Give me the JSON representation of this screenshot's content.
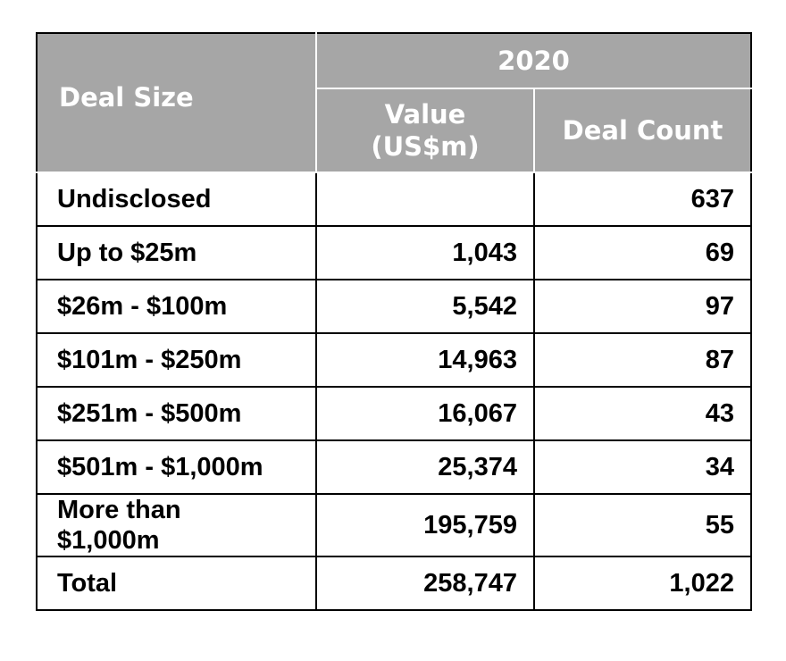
{
  "chart_data": {
    "type": "table",
    "columns": {
      "deal_size": "Deal Size",
      "year": "2020",
      "value_line1": "Value",
      "value_line2": "(US$m)",
      "deal_count": "Deal Count"
    },
    "rows": [
      {
        "label": "Undisclosed",
        "value": "",
        "count": "637"
      },
      {
        "label": "Up to $25m",
        "value": "1,043",
        "count": "69"
      },
      {
        "label": "$26m - $100m",
        "value": "5,542",
        "count": "97"
      },
      {
        "label": "$101m - $250m",
        "value": "14,963",
        "count": "87"
      },
      {
        "label": "$251m - $500m",
        "value": "16,067",
        "count": "43"
      },
      {
        "label": "$501m - $1,000m",
        "value": "25,374",
        "count": "34"
      },
      {
        "label_line1": "More than",
        "label_line2": "$1,000m",
        "value": "195,759",
        "count": "55"
      },
      {
        "label": "Total",
        "value": "258,747",
        "count": "1,022"
      }
    ],
    "colors": {
      "header_bg": "#a6a6a6",
      "header_text": "#ffffff",
      "grid": "#000000"
    }
  }
}
